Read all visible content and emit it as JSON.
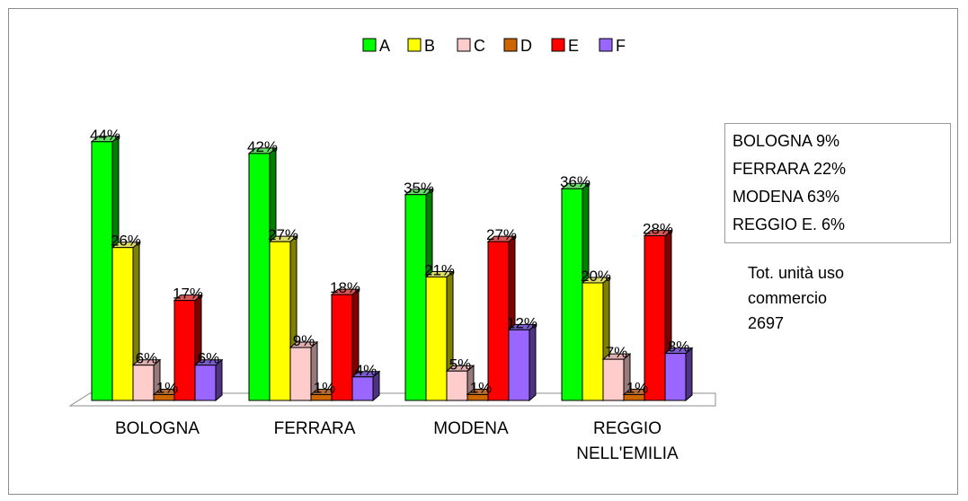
{
  "chart_data": {
    "type": "bar",
    "categories": [
      "BOLOGNA",
      "FERRARA",
      "MODENA",
      "REGGIO NELL'EMILIA"
    ],
    "category_lines": [
      [
        "BOLOGNA"
      ],
      [
        "FERRARA"
      ],
      [
        "MODENA"
      ],
      [
        "REGGIO",
        "NELL'EMILIA"
      ]
    ],
    "series": [
      {
        "name": "A",
        "color": "#00ff00",
        "side": "#008000",
        "top": "#66dd66",
        "values": [
          44,
          42,
          35,
          36
        ]
      },
      {
        "name": "B",
        "color": "#ffff00",
        "side": "#808000",
        "top": "#dddd66",
        "values": [
          26,
          27,
          21,
          20
        ]
      },
      {
        "name": "C",
        "color": "#ffcccc",
        "side": "#997a7a",
        "top": "#e0b0b0",
        "values": [
          6,
          9,
          5,
          7
        ]
      },
      {
        "name": "D",
        "color": "#cc6600",
        "side": "#7a3d00",
        "top": "#b36b33",
        "values": [
          1,
          1,
          1,
          1
        ]
      },
      {
        "name": "E",
        "color": "#ff0000",
        "side": "#800000",
        "top": "#dd5555",
        "values": [
          17,
          18,
          27,
          28
        ]
      },
      {
        "name": "F",
        "color": "#9966ff",
        "side": "#4d3380",
        "top": "#7a5ccc",
        "values": [
          6,
          4,
          12,
          8
        ]
      }
    ],
    "labels": [
      [
        "44%",
        "26%",
        "6%",
        "1%",
        "17%",
        "6%"
      ],
      [
        "42%",
        "27%",
        "9%",
        "1%",
        "18%",
        "4%"
      ],
      [
        "35%",
        "21%",
        "5%",
        "1%",
        "27%",
        "12%"
      ],
      [
        "36%",
        "20%",
        "7%",
        "1%",
        "28%",
        "8%"
      ]
    ],
    "legend": "top",
    "grid": false
  },
  "share_box": {
    "lines": [
      "BOLOGNA   9%",
      "FERRARA   22%",
      "MODENA   63%",
      "REGGIO E.   6%"
    ]
  },
  "total_note": {
    "lines": [
      "Tot. unità uso",
      "commercio",
      "2697"
    ]
  }
}
